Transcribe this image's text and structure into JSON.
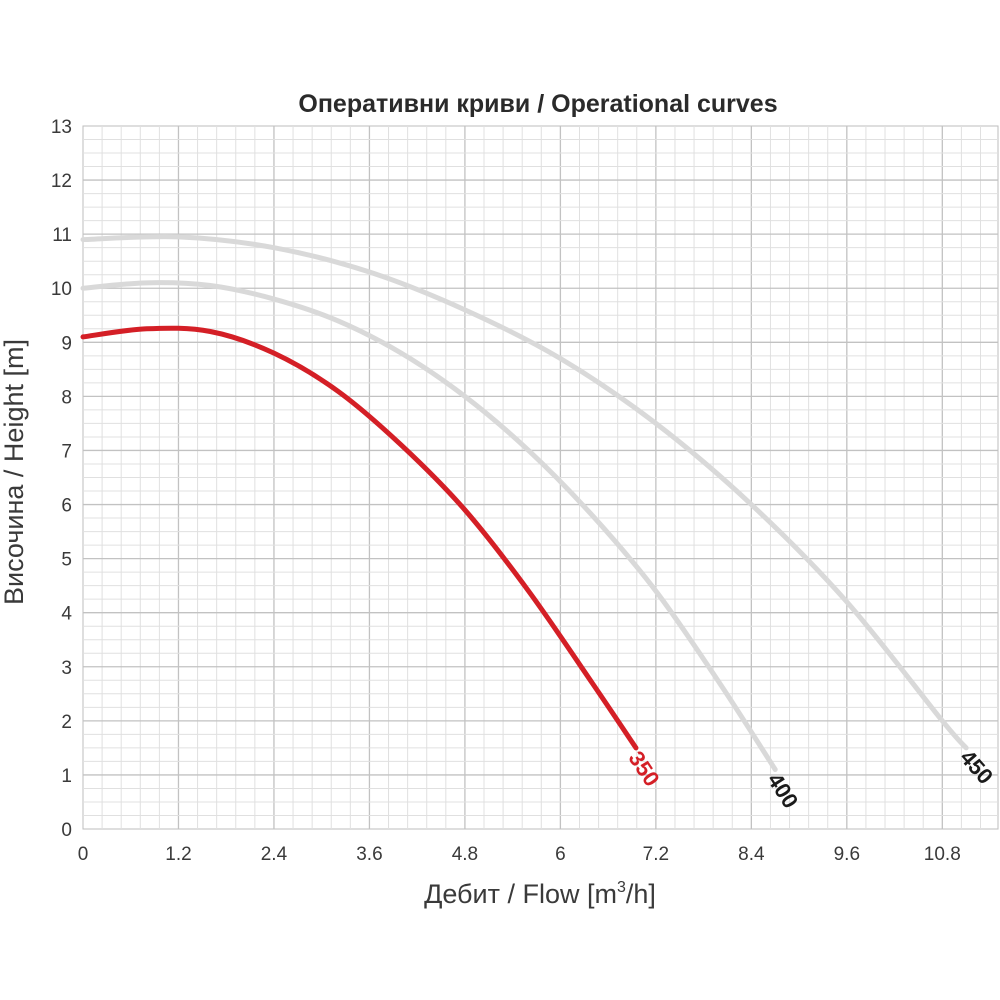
{
  "chart_data": {
    "type": "line",
    "title": "Оперативни криви / Operational curves",
    "xlabel_prefix": "Дебит / Flow [m",
    "xlabel_sup": "3",
    "xlabel_suffix": "/h]",
    "ylabel": "Височина / Height [m]",
    "xlim": [
      0,
      11.5
    ],
    "ylim": [
      0,
      13
    ],
    "x_ticks": [
      "0",
      "1.2",
      "2.4",
      "3.6",
      "4.8",
      "6",
      "7.2",
      "8.4",
      "9.6",
      "10.8"
    ],
    "x_tick_values": [
      0,
      1.2,
      2.4,
      3.6,
      4.8,
      6,
      7.2,
      8.4,
      9.6,
      10.8
    ],
    "y_ticks": [
      "0",
      "1",
      "2",
      "3",
      "4",
      "5",
      "6",
      "7",
      "8",
      "9",
      "10",
      "11",
      "12",
      "13"
    ],
    "y_tick_values": [
      0,
      1,
      2,
      3,
      4,
      5,
      6,
      7,
      8,
      9,
      10,
      11,
      12,
      13
    ],
    "grid": true,
    "series": [
      {
        "name": "350",
        "color": "#d41f26",
        "label_color": "#d41f26",
        "x": [
          0,
          0.8,
          1.6,
          2.4,
          3.2,
          4.0,
          4.8,
          5.6,
          6.4,
          6.95
        ],
        "y": [
          9.1,
          9.25,
          9.2,
          8.8,
          8.1,
          7.1,
          5.9,
          4.4,
          2.7,
          1.5
        ]
      },
      {
        "name": "400",
        "color": "#d9d9d9",
        "label_color": "#1a1a1a",
        "x": [
          0,
          0.8,
          1.6,
          2.4,
          3.2,
          4.0,
          4.8,
          5.6,
          6.4,
          7.2,
          8.0,
          8.7
        ],
        "y": [
          10.0,
          10.1,
          10.05,
          9.8,
          9.4,
          8.8,
          8.0,
          7.0,
          5.8,
          4.4,
          2.7,
          1.1
        ]
      },
      {
        "name": "450",
        "color": "#d9d9d9",
        "label_color": "#1a1a1a",
        "x": [
          0,
          1.2,
          2.4,
          3.6,
          4.8,
          6.0,
          7.2,
          8.4,
          9.6,
          10.8,
          11.1
        ],
        "y": [
          10.9,
          10.95,
          10.75,
          10.3,
          9.6,
          8.7,
          7.5,
          6.0,
          4.2,
          2.0,
          1.5
        ]
      }
    ]
  }
}
